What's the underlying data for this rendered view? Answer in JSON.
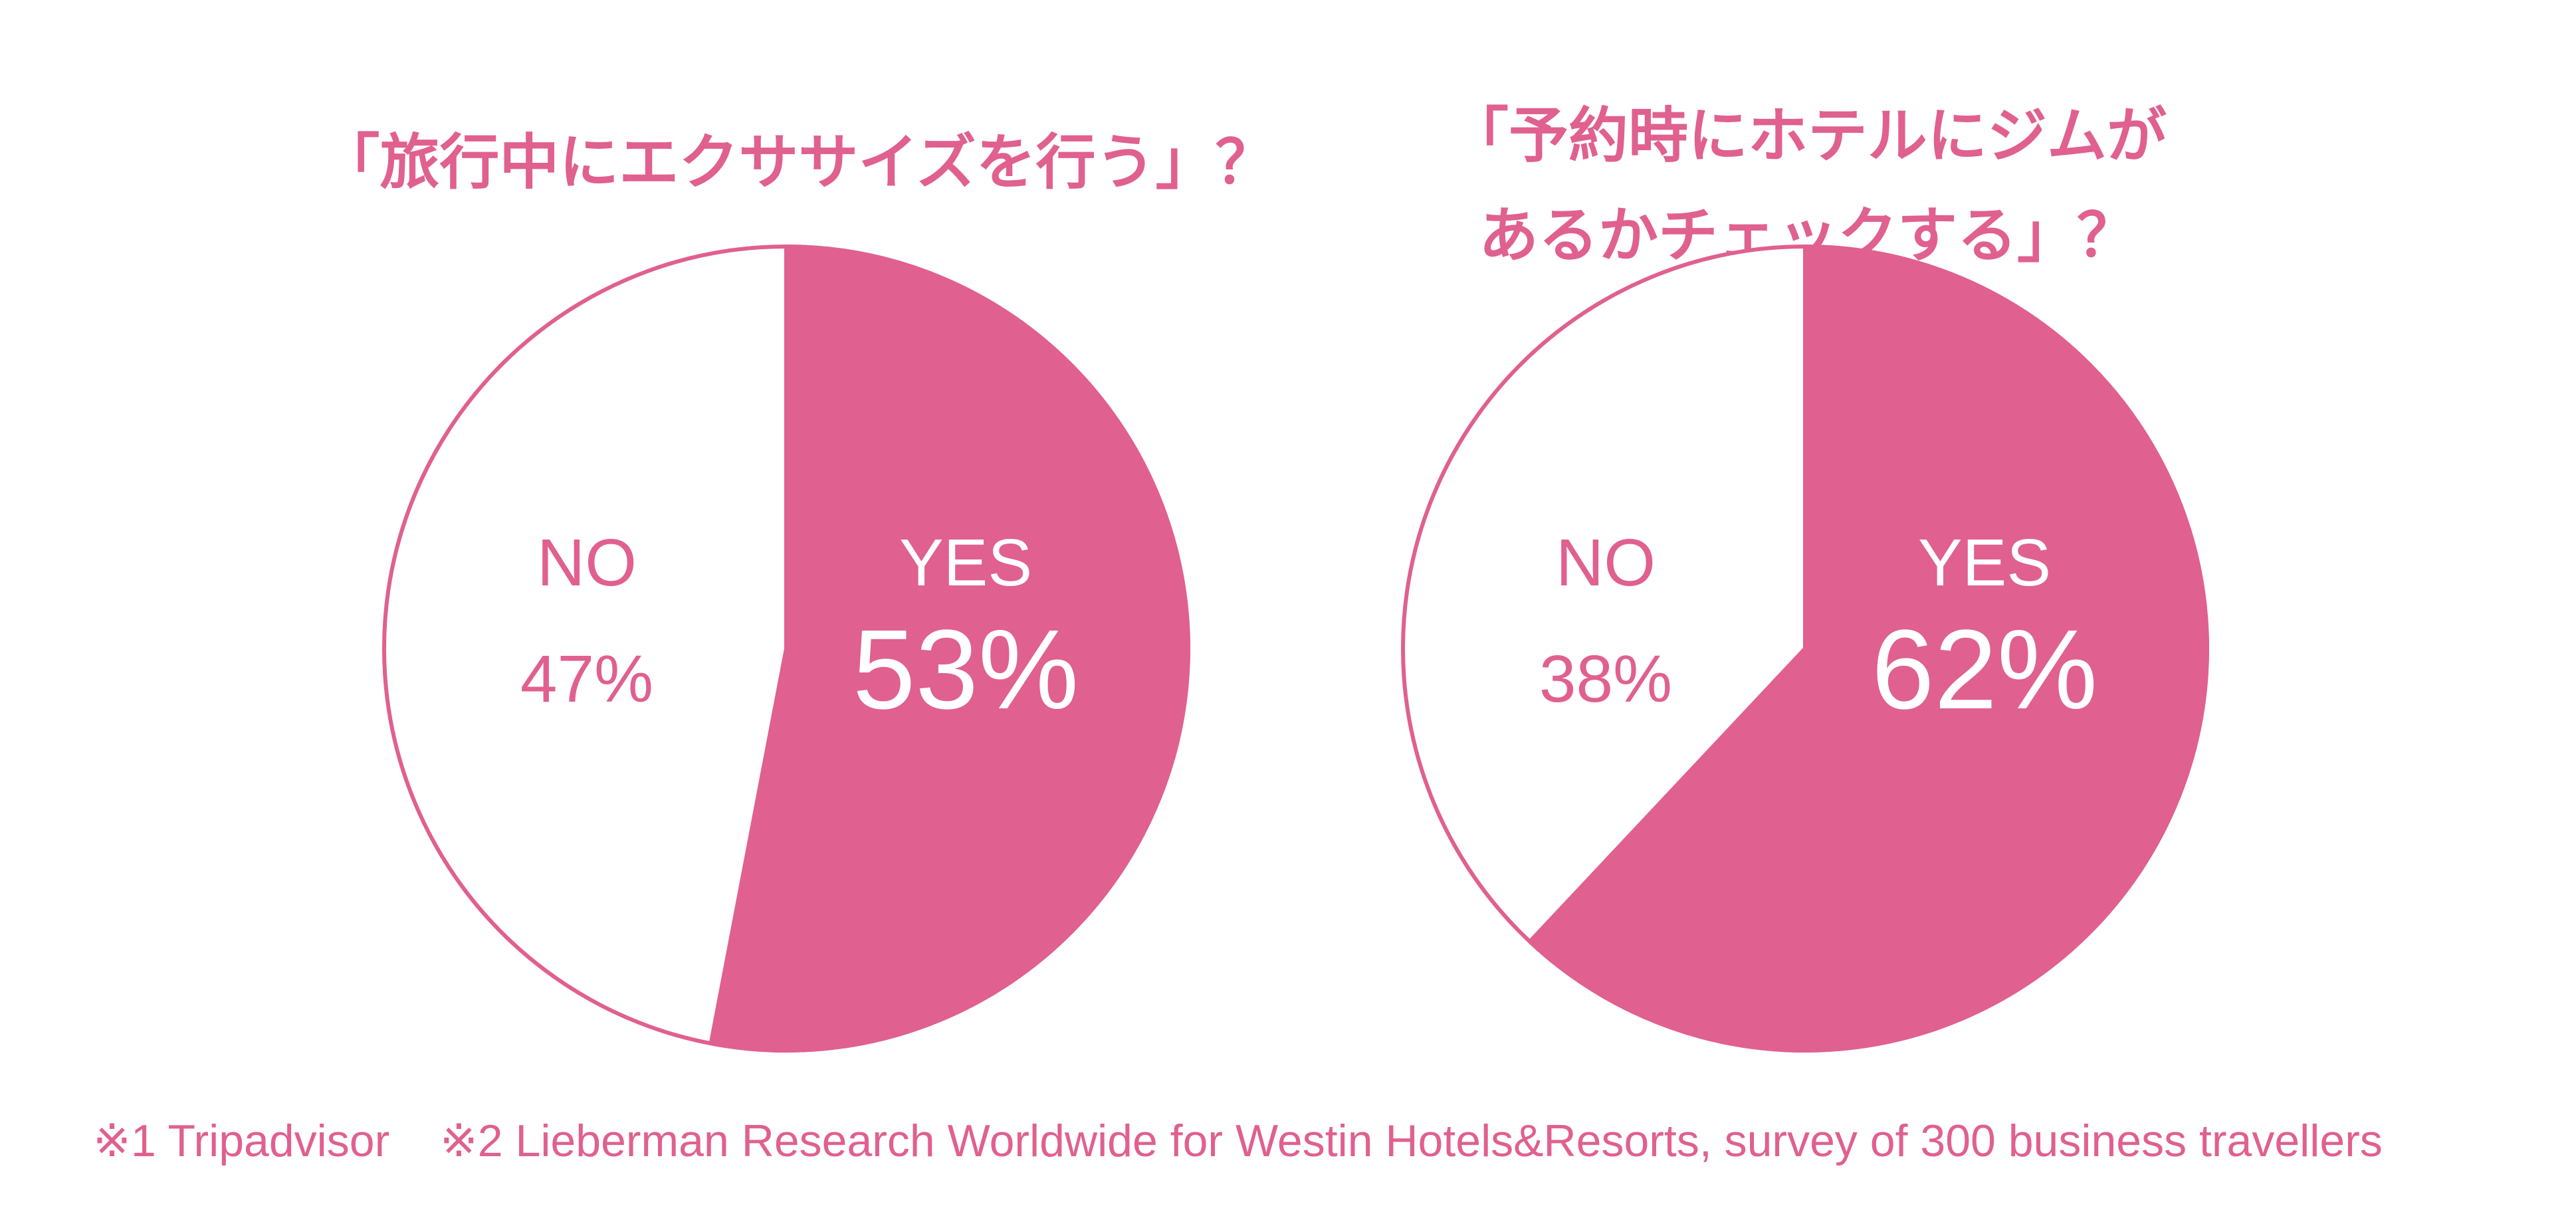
{
  "colors": {
    "accent": "#e0608f",
    "background": "#ffffff"
  },
  "chart_data": [
    {
      "type": "pie",
      "title": "「旅行中にエクササイズを行う」？",
      "slices": [
        {
          "label": "YES",
          "value": 53,
          "value_label": "53%",
          "color": "#e0608f"
        },
        {
          "label": "NO",
          "value": 47,
          "value_label": "47%",
          "color": "#ffffff"
        }
      ]
    },
    {
      "type": "pie",
      "title": "「予約時にホテルにジムが\nあるかチェックする」？",
      "slices": [
        {
          "label": "YES",
          "value": 62,
          "value_label": "62%",
          "color": "#e0608f"
        },
        {
          "label": "NO",
          "value": 38,
          "value_label": "38%",
          "color": "#ffffff"
        }
      ]
    }
  ],
  "footnote": "※1 Tripadvisor    ※2 Lieberman Research Worldwide for Westin Hotels&Resorts, survey of 300 business travellers"
}
